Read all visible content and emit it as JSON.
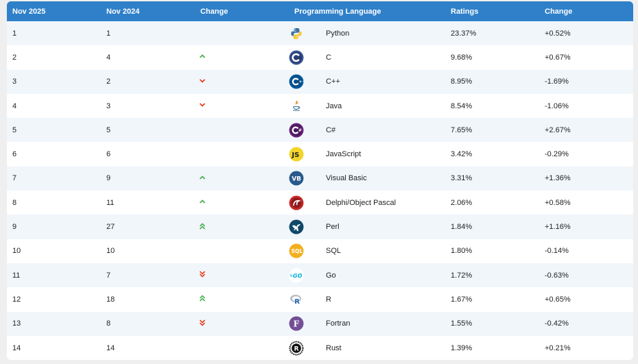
{
  "header": {
    "col1": "Nov 2025",
    "col2": "Nov 2024",
    "col3": "Change",
    "col4": "Programming Language",
    "col5": "Ratings",
    "col6": "Change"
  },
  "colors": {
    "header_bg": "#2f80c9",
    "arrow_up": "#4caf50",
    "arrow_down": "#e2431e"
  },
  "rows": [
    {
      "rank2025": "1",
      "rank2024": "1",
      "trend": "none",
      "language": "Python",
      "icon": "python-icon",
      "rating": "23.37%",
      "change": "+0.52%"
    },
    {
      "rank2025": "2",
      "rank2024": "4",
      "trend": "up",
      "language": "C",
      "icon": "c-icon",
      "rating": "9.68%",
      "change": "+0.67%"
    },
    {
      "rank2025": "3",
      "rank2024": "2",
      "trend": "down",
      "language": "C++",
      "icon": "cpp-icon",
      "rating": "8.95%",
      "change": "-1.69%"
    },
    {
      "rank2025": "4",
      "rank2024": "3",
      "trend": "down",
      "language": "Java",
      "icon": "java-icon",
      "rating": "8.54%",
      "change": "-1.06%"
    },
    {
      "rank2025": "5",
      "rank2024": "5",
      "trend": "none",
      "language": "C#",
      "icon": "csharp-icon",
      "rating": "7.65%",
      "change": "+2.67%"
    },
    {
      "rank2025": "6",
      "rank2024": "6",
      "trend": "none",
      "language": "JavaScript",
      "icon": "javascript-icon",
      "rating": "3.42%",
      "change": "-0.29%"
    },
    {
      "rank2025": "7",
      "rank2024": "9",
      "trend": "up",
      "language": "Visual Basic",
      "icon": "visual-basic-icon",
      "rating": "3.31%",
      "change": "+1.36%"
    },
    {
      "rank2025": "8",
      "rank2024": "11",
      "trend": "up",
      "language": "Delphi/Object Pascal",
      "icon": "delphi-icon",
      "rating": "2.06%",
      "change": "+0.58%"
    },
    {
      "rank2025": "9",
      "rank2024": "27",
      "trend": "double-up",
      "language": "Perl",
      "icon": "perl-icon",
      "rating": "1.84%",
      "change": "+1.16%"
    },
    {
      "rank2025": "10",
      "rank2024": "10",
      "trend": "none",
      "language": "SQL",
      "icon": "sql-icon",
      "rating": "1.80%",
      "change": "-0.14%"
    },
    {
      "rank2025": "11",
      "rank2024": "7",
      "trend": "double-down",
      "language": "Go",
      "icon": "go-icon",
      "rating": "1.72%",
      "change": "-0.63%"
    },
    {
      "rank2025": "12",
      "rank2024": "18",
      "trend": "double-up",
      "language": "R",
      "icon": "r-icon",
      "rating": "1.67%",
      "change": "+0.65%"
    },
    {
      "rank2025": "13",
      "rank2024": "8",
      "trend": "double-down",
      "language": "Fortran",
      "icon": "fortran-icon",
      "rating": "1.55%",
      "change": "-0.42%"
    },
    {
      "rank2025": "14",
      "rank2024": "14",
      "trend": "none",
      "language": "Rust",
      "icon": "rust-icon",
      "rating": "1.39%",
      "change": "+0.21%"
    }
  ]
}
